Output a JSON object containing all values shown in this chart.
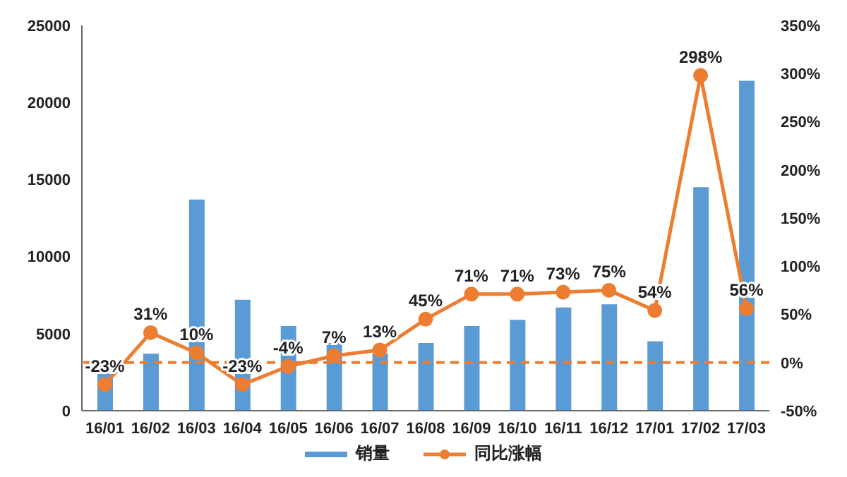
{
  "chart_data": {
    "type": "bar",
    "categories": [
      "16/01",
      "16/02",
      "16/03",
      "16/04",
      "16/05",
      "16/06",
      "16/07",
      "16/08",
      "16/09",
      "16/10",
      "16/11",
      "16/12",
      "17/01",
      "17/02",
      "17/03"
    ],
    "series": [
      {
        "name": "销量",
        "color": "#5b9bd5",
        "values": [
          3000,
          3700,
          13700,
          7200,
          5500,
          4400,
          3700,
          4400,
          5500,
          5900,
          6700,
          6900,
          4500,
          14500,
          21400
        ]
      },
      {
        "name": "同比涨幅",
        "type": "line",
        "axis": "y2",
        "color": "#ed7d31",
        "marker": "circle",
        "values": [
          -23,
          31,
          10,
          -23,
          -4,
          7,
          13,
          45,
          71,
          71,
          73,
          75,
          54,
          298,
          56
        ],
        "value_labels": [
          "-23%",
          "31%",
          "10%",
          "-23%",
          "-4%",
          "7%",
          "13%",
          "45%",
          "71%",
          "71%",
          "73%",
          "75%",
          "54%",
          "298%",
          "56%"
        ]
      }
    ],
    "ylim": [
      0,
      25000
    ],
    "yticks": [
      0,
      5000,
      10000,
      15000,
      20000,
      25000
    ],
    "y2lim": [
      -50,
      350
    ],
    "y2ticks": [
      {
        "value": -50,
        "label": "-50%"
      },
      {
        "value": 0,
        "label": "0%"
      },
      {
        "value": 50,
        "label": "50%"
      },
      {
        "value": 100,
        "label": "100%"
      },
      {
        "value": 150,
        "label": "150%"
      },
      {
        "value": 200,
        "label": "200%"
      },
      {
        "value": 250,
        "label": "250%"
      },
      {
        "value": 300,
        "label": "300%"
      },
      {
        "value": 350,
        "label": "350%"
      }
    ],
    "ref_lines": [
      {
        "axis": "y2",
        "value": 0,
        "color": "#ed7d31",
        "line_style": "dashed"
      }
    ],
    "legend": "bottom"
  }
}
